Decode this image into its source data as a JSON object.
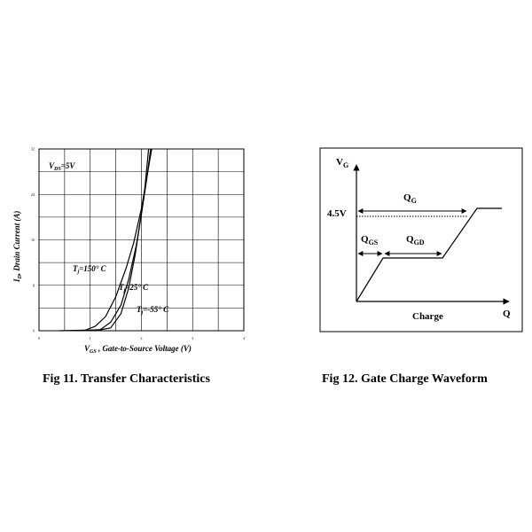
{
  "chart_data": [
    {
      "type": "line",
      "caption": "Fig 11. Transfer Characteristics",
      "xlabel": "V GS , Gate-to-Source Voltage (V)",
      "xlabel_main": "V",
      "xlabel_sub": "GS",
      "xlabel_rest": " , Gate-to-Source Voltage (V)",
      "ylabel": "I D , Drain Current (A)",
      "ylabel_main": "I",
      "ylabel_sub": "D",
      "ylabel_rest": ", Drain Current (A)",
      "xlim": [
        0,
        4
      ],
      "ylim": [
        0,
        32
      ],
      "xticks": [
        "0",
        "1",
        "2",
        "3",
        "4"
      ],
      "yticks": [
        "0",
        "8",
        "16",
        "24",
        "32"
      ],
      "grid": true,
      "annotation_vds": {
        "main": "V",
        "sub": "DS",
        "rest": "=5V"
      },
      "series": [
        {
          "name": "T j =150° C",
          "label_main": "T",
          "label_sub": "j",
          "label_rest": "=150° C",
          "x": [
            0.4,
            0.9,
            1.1,
            1.3,
            1.5,
            1.7,
            1.85,
            2.0,
            2.2
          ],
          "y": [
            0,
            0.1,
            0.8,
            2.5,
            6.0,
            11.0,
            15.5,
            21.5,
            32
          ]
        },
        {
          "name": "T j =25° C",
          "label_main": "T",
          "label_sub": "j",
          "label_rest": "=25° C",
          "x": [
            0.8,
            1.2,
            1.4,
            1.6,
            1.75,
            1.9,
            2.0,
            2.1,
            2.18
          ],
          "y": [
            0,
            0.2,
            1.5,
            4.5,
            9.0,
            15.0,
            20.5,
            26.5,
            32
          ]
        },
        {
          "name": "T j =-55° C",
          "label_main": "T",
          "label_sub": "j",
          "label_rest": "=-55° C",
          "x": [
            1.1,
            1.4,
            1.6,
            1.75,
            1.88,
            1.98,
            2.06,
            2.14
          ],
          "y": [
            0,
            0.5,
            3.0,
            7.5,
            13.5,
            19.5,
            24.5,
            32
          ]
        }
      ]
    },
    {
      "type": "diagram",
      "caption": "Fig 12. Gate Charge Waveform",
      "yaxis_label": {
        "main": "V",
        "sub": "G"
      },
      "xaxis_label": "Q",
      "xaxis_title": "Charge",
      "level_label": "4.5V",
      "qg": {
        "main": "Q",
        "sub": "G"
      },
      "qgs": {
        "main": "Q",
        "sub": "GS"
      },
      "qgd": {
        "main": "Q",
        "sub": "GD"
      }
    }
  ]
}
